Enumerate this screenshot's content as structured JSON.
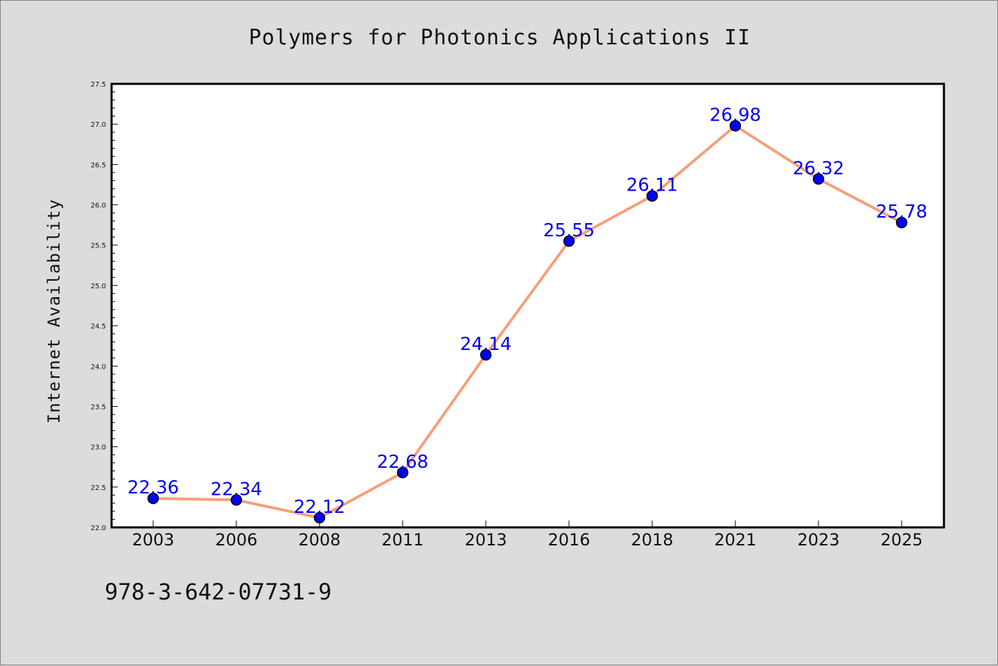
{
  "page": {
    "background": "#dcdcdc",
    "footer_text": "978-3-642-07731-9"
  },
  "chart_data": {
    "type": "line",
    "title": "Polymers for Photonics Applications II",
    "xlabel": "",
    "ylabel": "Internet Availability",
    "categories": [
      "2003",
      "2006",
      "2008",
      "2011",
      "2013",
      "2016",
      "2018",
      "2021",
      "2023",
      "2025"
    ],
    "series": [
      {
        "values": [
          22.36,
          22.34,
          22.12,
          22.68,
          24.14,
          25.55,
          26.11,
          26.98,
          26.32,
          25.78
        ],
        "data_labels": [
          "22.36",
          "22.34",
          "22.12",
          "22.68",
          "24.14",
          "25.55",
          "26.11",
          "26.98",
          "26.32",
          "25.78"
        ],
        "line_color": "#f4a07a",
        "marker_color": "#0000ff"
      }
    ],
    "ylim": [
      22.0,
      27.5
    ],
    "yticks": [
      "22.0",
      "22.5",
      "23.0",
      "23.5",
      "24.0",
      "24.5",
      "25.0",
      "25.5",
      "26.0",
      "26.5",
      "27.0",
      "27.5"
    ],
    "grid": false,
    "legend": "none",
    "plot_background": "#ffffff"
  }
}
